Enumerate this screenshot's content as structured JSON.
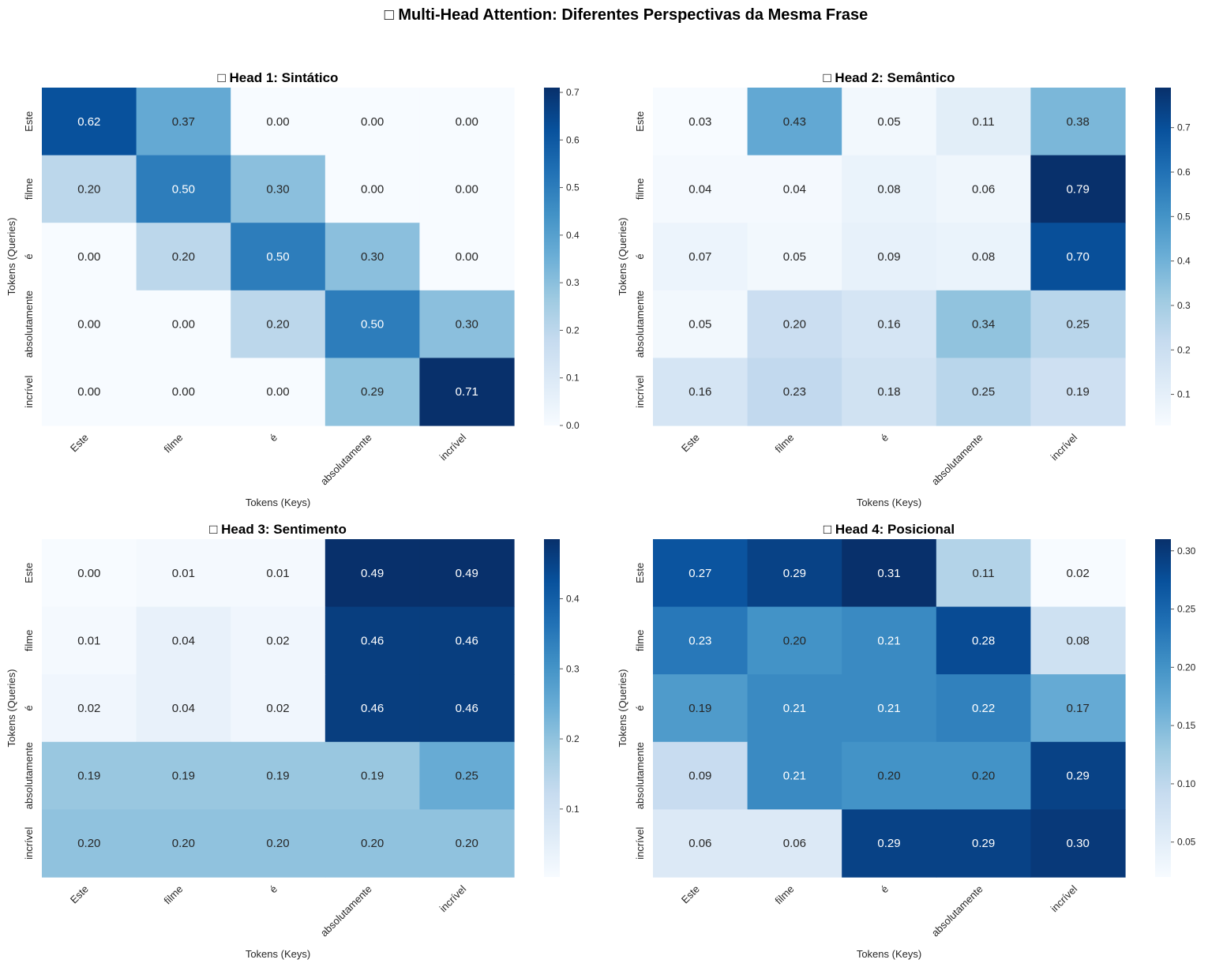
{
  "figure_title": "□ Multi-Head Attention: Diferentes Perspectivas da Mesma Frase",
  "chart_data": [
    {
      "type": "heatmap",
      "title": "□ Head 1: Sintático",
      "xlabel": "Tokens (Keys)",
      "ylabel": "Tokens (Queries)",
      "x_tokens": [
        "Este",
        "filme",
        "é",
        "absolutamente",
        "incrível"
      ],
      "y_tokens": [
        "Este",
        "filme",
        "é",
        "absolutamente",
        "incrível"
      ],
      "values": [
        [
          0.62,
          0.37,
          0.0,
          0.0,
          0.0
        ],
        [
          0.2,
          0.5,
          0.3,
          0.0,
          0.0
        ],
        [
          0.0,
          0.2,
          0.5,
          0.3,
          0.0
        ],
        [
          0.0,
          0.0,
          0.2,
          0.5,
          0.3
        ],
        [
          0.0,
          0.0,
          0.0,
          0.29,
          0.71
        ]
      ],
      "labels": [
        [
          "0.62",
          "0.37",
          "0.00",
          "0.00",
          "0.00"
        ],
        [
          "0.20",
          "0.50",
          "0.30",
          "0.00",
          "0.00"
        ],
        [
          "0.00",
          "0.20",
          "0.50",
          "0.30",
          "0.00"
        ],
        [
          "0.00",
          "0.00",
          "0.20",
          "0.50",
          "0.30"
        ],
        [
          "0.00",
          "0.00",
          "0.00",
          "0.29",
          "0.71"
        ]
      ],
      "colormap": "Blues",
      "vmin": 0.0,
      "vmax": 0.71,
      "colorbar_ticks": [
        "0.0",
        "0.1",
        "0.2",
        "0.3",
        "0.4",
        "0.5",
        "0.6",
        "0.7"
      ],
      "colorbar_tick_values": [
        0.0,
        0.1,
        0.2,
        0.3,
        0.4,
        0.5,
        0.6,
        0.7
      ]
    },
    {
      "type": "heatmap",
      "title": "□ Head 2: Semântico",
      "xlabel": "Tokens (Keys)",
      "ylabel": "Tokens (Queries)",
      "x_tokens": [
        "Este",
        "filme",
        "é",
        "absolutamente",
        "incrível"
      ],
      "y_tokens": [
        "Este",
        "filme",
        "é",
        "absolutamente",
        "incrível"
      ],
      "values": [
        [
          0.03,
          0.43,
          0.05,
          0.11,
          0.38
        ],
        [
          0.04,
          0.04,
          0.08,
          0.06,
          0.79
        ],
        [
          0.07,
          0.05,
          0.09,
          0.08,
          0.7
        ],
        [
          0.05,
          0.2,
          0.16,
          0.34,
          0.25
        ],
        [
          0.16,
          0.23,
          0.18,
          0.25,
          0.19
        ]
      ],
      "labels": [
        [
          "0.03",
          "0.43",
          "0.05",
          "0.11",
          "0.38"
        ],
        [
          "0.04",
          "0.04",
          "0.08",
          "0.06",
          "0.79"
        ],
        [
          "0.07",
          "0.05",
          "0.09",
          "0.08",
          "0.70"
        ],
        [
          "0.05",
          "0.20",
          "0.16",
          "0.34",
          "0.25"
        ],
        [
          "0.16",
          "0.23",
          "0.18",
          "0.25",
          "0.19"
        ]
      ],
      "colormap": "Blues",
      "vmin": 0.03,
      "vmax": 0.79,
      "colorbar_ticks": [
        "0.1",
        "0.2",
        "0.3",
        "0.4",
        "0.5",
        "0.6",
        "0.7"
      ],
      "colorbar_tick_values": [
        0.1,
        0.2,
        0.3,
        0.4,
        0.5,
        0.6,
        0.7
      ]
    },
    {
      "type": "heatmap",
      "title": "□ Head 3: Sentimento",
      "xlabel": "Tokens (Keys)",
      "ylabel": "Tokens (Queries)",
      "x_tokens": [
        "Este",
        "filme",
        "é",
        "absolutamente",
        "incrível"
      ],
      "y_tokens": [
        "Este",
        "filme",
        "é",
        "absolutamente",
        "incrível"
      ],
      "values": [
        [
          0.0,
          0.01,
          0.01,
          0.49,
          0.49
        ],
        [
          0.01,
          0.04,
          0.02,
          0.46,
          0.46
        ],
        [
          0.02,
          0.04,
          0.02,
          0.46,
          0.46
        ],
        [
          0.19,
          0.19,
          0.19,
          0.19,
          0.25
        ],
        [
          0.2,
          0.2,
          0.2,
          0.2,
          0.2
        ]
      ],
      "labels": [
        [
          "0.00",
          "0.01",
          "0.01",
          "0.49",
          "0.49"
        ],
        [
          "0.01",
          "0.04",
          "0.02",
          "0.46",
          "0.46"
        ],
        [
          "0.02",
          "0.04",
          "0.02",
          "0.46",
          "0.46"
        ],
        [
          "0.19",
          "0.19",
          "0.19",
          "0.19",
          "0.25"
        ],
        [
          "0.20",
          "0.20",
          "0.20",
          "0.20",
          "0.20"
        ]
      ],
      "colormap": "Blues",
      "vmin": 0.003,
      "vmax": 0.485,
      "colorbar_ticks": [
        "0.1",
        "0.2",
        "0.3",
        "0.4"
      ],
      "colorbar_tick_values": [
        0.1,
        0.2,
        0.3,
        0.4
      ]
    },
    {
      "type": "heatmap",
      "title": "□ Head 4: Posicional",
      "xlabel": "Tokens (Keys)",
      "ylabel": "Tokens (Queries)",
      "x_tokens": [
        "Este",
        "filme",
        "é",
        "absolutamente",
        "incrível"
      ],
      "y_tokens": [
        "Este",
        "filme",
        "é",
        "absolutamente",
        "incrível"
      ],
      "values": [
        [
          0.27,
          0.29,
          0.31,
          0.11,
          0.02
        ],
        [
          0.23,
          0.2,
          0.21,
          0.28,
          0.08
        ],
        [
          0.19,
          0.21,
          0.21,
          0.22,
          0.17
        ],
        [
          0.09,
          0.21,
          0.2,
          0.2,
          0.29
        ],
        [
          0.06,
          0.06,
          0.29,
          0.29,
          0.3
        ]
      ],
      "labels": [
        [
          "0.27",
          "0.29",
          "0.31",
          "0.11",
          "0.02"
        ],
        [
          "0.23",
          "0.20",
          "0.21",
          "0.28",
          "0.08"
        ],
        [
          "0.19",
          "0.21",
          "0.21",
          "0.22",
          "0.17"
        ],
        [
          "0.09",
          "0.21",
          "0.20",
          "0.20",
          "0.29"
        ],
        [
          "0.06",
          "0.06",
          "0.29",
          "0.29",
          "0.30"
        ]
      ],
      "colormap": "Blues",
      "vmin": 0.02,
      "vmax": 0.31,
      "colorbar_ticks": [
        "0.05",
        "0.10",
        "0.15",
        "0.20",
        "0.25",
        "0.30"
      ],
      "colorbar_tick_values": [
        0.05,
        0.1,
        0.15,
        0.2,
        0.25,
        0.3
      ]
    }
  ]
}
